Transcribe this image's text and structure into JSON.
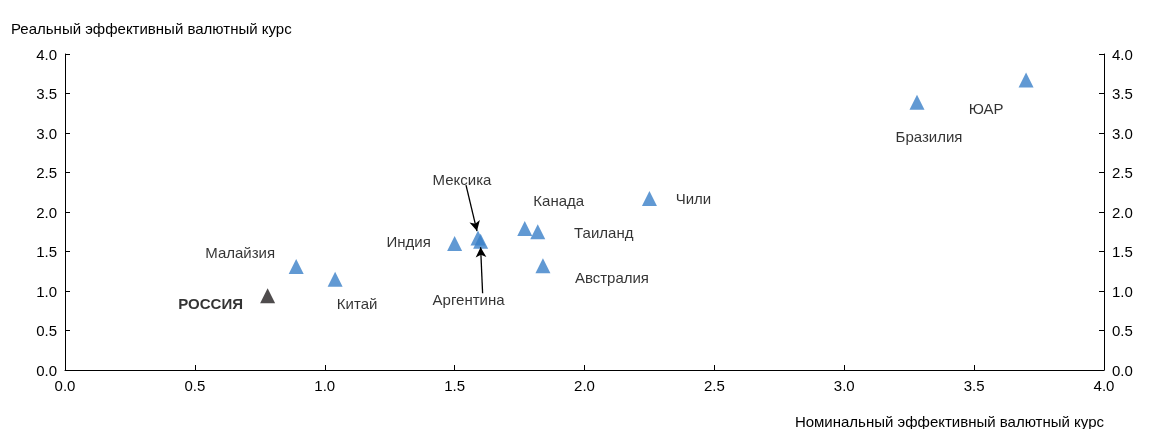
{
  "chart_data": {
    "type": "scatter",
    "xlabel": "Номинальный эффективный валютный курс",
    "ylabel": "Реальный эффективный валютный курс",
    "series": [
      {
        "color": "#3a7fc8",
        "x": [
          0.89,
          1.04,
          1.5,
          1.59,
          1.6,
          1.77,
          1.82,
          1.84,
          2.25,
          3.28,
          3.7
        ],
        "values": [
          1.31,
          1.15,
          1.6,
          1.67,
          1.63,
          1.79,
          1.75,
          1.32,
          2.17,
          3.39,
          3.67
        ]
      },
      {
        "color": "#231f20",
        "x": [
          0.78
        ],
        "values": [
          0.94
        ]
      }
    ],
    "annotations": [
      {
        "text": "РОССИЯ",
        "x": 0.78,
        "y": 0.94
      },
      {
        "text": "Малайзия",
        "x": 0.89,
        "y": 1.31
      },
      {
        "text": "Китай",
        "x": 1.04,
        "y": 1.15
      },
      {
        "text": "Индия",
        "x": 1.5,
        "y": 1.6
      },
      {
        "text": "Мексика",
        "x": 1.59,
        "y": 1.67
      },
      {
        "text": "Аргентина",
        "x": 1.6,
        "y": 1.63
      },
      {
        "text": "Канада",
        "x": 1.77,
        "y": 1.79
      },
      {
        "text": "Таиланд",
        "x": 1.82,
        "y": 1.75
      },
      {
        "text": "Австралия",
        "x": 1.84,
        "y": 1.32
      },
      {
        "text": "Чили",
        "x": 2.25,
        "y": 2.17
      },
      {
        "text": "Бразилия",
        "x": 3.28,
        "y": 3.39
      },
      {
        "text": "ЮАР",
        "x": 3.7,
        "y": 3.67
      }
    ],
    "marker": "triangle",
    "xlim": [
      0,
      4
    ],
    "xticks": [
      {
        "value": 0,
        "label": "0.0"
      },
      0.5,
      {
        "value": 1,
        "label": "1.0"
      },
      1.5,
      {
        "value": 2,
        "label": "2.0"
      },
      2.5,
      {
        "value": 3,
        "label": "3.0"
      },
      3.5,
      {
        "value": 4,
        "label": "4.0"
      }
    ],
    "ylim": [
      0,
      4
    ],
    "yticks": [
      {
        "value": 0,
        "label": "0.0"
      },
      0.5,
      {
        "value": 1,
        "label": "1.0"
      },
      1.5,
      {
        "value": 2,
        "label": "2.0"
      },
      2.5,
      {
        "value": 3,
        "label": "3.0"
      },
      3.5,
      {
        "value": 4,
        "label": "4.0"
      }
    ],
    "y2lim": [
      0,
      4
    ],
    "y2ticks": [
      {
        "value": 0,
        "label": "0.0"
      },
      0.5,
      {
        "value": 1,
        "label": "1.0"
      },
      1.5,
      {
        "value": 2,
        "label": "2.0"
      },
      2.5,
      {
        "value": 3,
        "label": "3.0"
      },
      3.5,
      {
        "value": 4,
        "label": "4.0"
      }
    ],
    "grid": false
  }
}
